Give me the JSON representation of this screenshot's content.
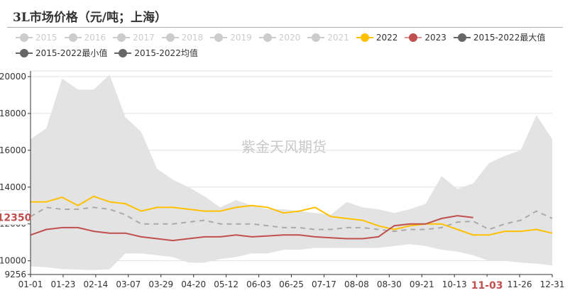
{
  "title": "3L市场价格（元/吨；上海）",
  "watermark": "紫金天风期货",
  "legend": [
    {
      "label": "2015",
      "color": "#cccccc",
      "active": false,
      "text_color": "#cccccc"
    },
    {
      "label": "2016",
      "color": "#cccccc",
      "active": false,
      "text_color": "#cccccc"
    },
    {
      "label": "2017",
      "color": "#cccccc",
      "active": false,
      "text_color": "#cccccc"
    },
    {
      "label": "2018",
      "color": "#cccccc",
      "active": false,
      "text_color": "#cccccc"
    },
    {
      "label": "2019",
      "color": "#cccccc",
      "active": false,
      "text_color": "#cccccc"
    },
    {
      "label": "2020",
      "color": "#cccccc",
      "active": false,
      "text_color": "#cccccc"
    },
    {
      "label": "2021",
      "color": "#cccccc",
      "active": false,
      "text_color": "#cccccc"
    },
    {
      "label": "2022",
      "color": "#ffc000",
      "active": true,
      "text_color": "#333333"
    },
    {
      "label": "2023",
      "color": "#c0504d",
      "active": true,
      "text_color": "#333333"
    },
    {
      "label": "2015-2022最大值",
      "color": "#666666",
      "active": true,
      "text_color": "#333333"
    },
    {
      "label": "2015-2022最小值",
      "color": "#666666",
      "active": true,
      "text_color": "#333333"
    },
    {
      "label": "2015-2022均值",
      "color": "#666666",
      "active": true,
      "text_color": "#333333"
    }
  ],
  "axis_pointer": {
    "y_label": "12350",
    "x_label": "11-03",
    "color": "#c0504d"
  },
  "chart_data": {
    "type": "line",
    "title": "3L市场价格（元/吨；上海）",
    "xlabel": "",
    "ylabel": "",
    "ylim": [
      9256,
      20000
    ],
    "y_ticks": [
      9256,
      10000,
      12000,
      14000,
      16000,
      18000,
      20000
    ],
    "x_ticks": [
      "01-01",
      "01-23",
      "02-14",
      "03-07",
      "03-29",
      "04-20",
      "05-12",
      "06-03",
      "06-25",
      "07-17",
      "08-08",
      "08-30",
      "09-21",
      "10-13",
      "11-03",
      "11-26",
      "12-31"
    ],
    "grid": true,
    "legend_position": "top",
    "colors": {
      "2022": "#ffc000",
      "2023": "#c0504d",
      "mean": "#aaaaaa",
      "band": "#e3e3e3"
    },
    "x": [
      "01-01",
      "01-12",
      "01-23",
      "02-03",
      "02-14",
      "02-25",
      "03-07",
      "03-18",
      "03-29",
      "04-09",
      "04-20",
      "05-01",
      "05-12",
      "05-23",
      "06-03",
      "06-14",
      "06-25",
      "07-06",
      "07-17",
      "07-28",
      "08-08",
      "08-19",
      "08-30",
      "09-10",
      "09-21",
      "10-02",
      "10-13",
      "10-24",
      "11-03",
      "11-15",
      "11-26",
      "12-08",
      "12-19",
      "12-31"
    ],
    "series": [
      {
        "name": "2015-2022最大值",
        "values": [
          16600,
          17200,
          19900,
          19300,
          19300,
          20100,
          17800,
          17000,
          15000,
          14400,
          14000,
          13500,
          12900,
          13300,
          13000,
          12800,
          12800,
          12700,
          12600,
          12500,
          13200,
          12900,
          12800,
          12600,
          12800,
          13100,
          14600,
          13900,
          14200,
          15300,
          15700,
          16000,
          17900,
          16600
        ]
      },
      {
        "name": "2015-2022最小值",
        "values": [
          9700,
          9650,
          9550,
          9520,
          9500,
          9540,
          10400,
          10400,
          10300,
          10200,
          9900,
          9900,
          10100,
          10200,
          10400,
          10400,
          10600,
          10600,
          10700,
          10700,
          10700,
          10700,
          10700,
          10800,
          10900,
          10800,
          10600,
          10500,
          10300,
          10000,
          10000,
          9900,
          9850,
          9750
        ]
      },
      {
        "name": "2015-2022均值",
        "values": [
          12400,
          12900,
          12800,
          12800,
          12900,
          12800,
          12500,
          12000,
          12000,
          12000,
          12100,
          12200,
          12000,
          12000,
          12000,
          11900,
          11800,
          11800,
          11700,
          11700,
          11800,
          11800,
          11700,
          11600,
          11700,
          11700,
          11800,
          12100,
          12150,
          11700,
          12000,
          12200,
          12700,
          12300
        ]
      },
      {
        "name": "2022",
        "values": [
          13200,
          13200,
          13450,
          13000,
          13500,
          13200,
          13100,
          12700,
          12900,
          12900,
          12800,
          12700,
          12700,
          12900,
          13000,
          12900,
          12600,
          12700,
          12900,
          12400,
          12300,
          12200,
          11900,
          11700,
          11900,
          12000,
          12000,
          11700,
          11400,
          11400,
          11600,
          11600,
          11700,
          11500
        ]
      },
      {
        "name": "2023",
        "values": [
          11400,
          11700,
          11800,
          11800,
          11600,
          11500,
          11500,
          11300,
          11200,
          11100,
          11200,
          11300,
          11300,
          11400,
          11300,
          11350,
          11400,
          11400,
          11300,
          11250,
          11200,
          11200,
          11300,
          11900,
          12000,
          12000,
          12300,
          12450,
          12350,
          null,
          null,
          null,
          null,
          null
        ]
      }
    ]
  }
}
